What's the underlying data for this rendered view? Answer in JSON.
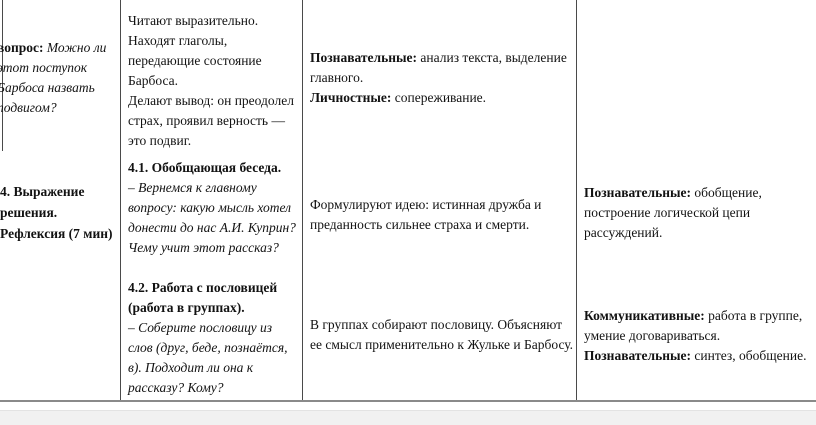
{
  "colors": {
    "page_bg": "#ffffff",
    "grid_border": "#4a4a4a",
    "bottom_border": "#8a8a8a",
    "outside_band": "#f1f1f1",
    "text": "#121212"
  },
  "table": {
    "col_stage": {
      "question_cell": {
        "lines": [
          [
            {
              "t": "вопрос:",
              "b": 1
            },
            {
              "t": " Можно ли",
              "i": 1
            }
          ],
          [
            {
              "t": "этот поступок",
              "i": 1
            }
          ],
          [
            {
              "t": "Барбоса назвать",
              "i": 1
            }
          ],
          [
            {
              "t": "подвигом?",
              "i": 1
            }
          ]
        ]
      },
      "stage_cell": {
        "lines": [
          [
            {
              "t": "4. Выражение",
              "b": 1
            }
          ],
          [
            {
              "t": "решения.",
              "b": 1
            }
          ],
          [
            {
              "t": "Рефлексия (7 мин)",
              "b": 1
            }
          ]
        ]
      }
    },
    "col_teacher": {
      "reading_cell": {
        "lines": [
          [
            {
              "t": "Читают выразительно."
            }
          ],
          [
            {
              "t": "Находят глаголы,"
            }
          ],
          [
            {
              "t": "передающие состояние"
            }
          ],
          [
            {
              "t": "Барбоса."
            }
          ],
          [
            {
              "t": "Делают вывод: он преодолел"
            }
          ],
          [
            {
              "t": "страх, проявил верность —"
            }
          ],
          [
            {
              "t": "это подвиг."
            }
          ]
        ]
      },
      "talk_cell": {
        "lines": [
          [
            {
              "t": "4.1. Обобщающая беседа.",
              "b": 1
            }
          ],
          [
            {
              "t": "– Вернемся к главному",
              "i": 1
            }
          ],
          [
            {
              "t": "вопросу: какую мысль хотел",
              "i": 1
            }
          ],
          [
            {
              "t": "донести до нас А.И. Куприн?",
              "i": 1
            }
          ],
          [
            {
              "t": "Чему учит этот рассказ?",
              "i": 1
            }
          ]
        ]
      },
      "proverb_cell": {
        "lines": [
          [
            {
              "t": "4.2. Работа с пословицей",
              "b": 1
            }
          ],
          [
            {
              "t": "(работа в группах).",
              "b": 1
            }
          ],
          [
            {
              "t": "– Соберите пословицу из",
              "i": 1
            }
          ],
          [
            {
              "t": "слов (друг, беде, познаётся,",
              "i": 1
            }
          ],
          [
            {
              "t": "в). Подходит ли она к",
              "i": 1
            }
          ],
          [
            {
              "t": "рассказу? Кому?",
              "i": 1
            }
          ]
        ]
      }
    },
    "col_students": {
      "uud_analysis_cell": {
        "lines": [
          [
            {
              "t": "Познавательные:",
              "b": 1
            },
            {
              "t": " анализ текста, выделение"
            }
          ],
          [
            {
              "t": "главного."
            }
          ],
          [
            {
              "t": "Личностные:",
              "b": 1
            },
            {
              "t": " сопереживание."
            }
          ]
        ]
      },
      "idea_cell": {
        "lines": [
          [
            {
              "t": "Формулируют идею: истинная дружба и"
            }
          ],
          [
            {
              "t": "преданность сильнее страха и смерти."
            }
          ]
        ]
      },
      "groups_cell": {
        "lines": [
          [
            {
              "t": "В группах собирают пословицу. Объясняют"
            }
          ],
          [
            {
              "t": "ее смысл применительно к Жульке и Барбосу."
            }
          ]
        ]
      }
    },
    "col_uud": {
      "generalization_cell": {
        "lines": [
          [
            {
              "t": "Познавательные:",
              "b": 1
            },
            {
              "t": " обобщение,"
            }
          ],
          [
            {
              "t": "построение логической цепи"
            }
          ],
          [
            {
              "t": "рассуждений."
            }
          ]
        ]
      },
      "communication_cell": {
        "lines": [
          [
            {
              "t": "Коммуникативные:",
              "b": 1
            },
            {
              "t": " работа в группе,"
            }
          ],
          [
            {
              "t": "умение договариваться."
            }
          ],
          [
            {
              "t": "Познавательные:",
              "b": 1
            },
            {
              "t": " синтез, обобщение."
            }
          ]
        ]
      }
    }
  }
}
